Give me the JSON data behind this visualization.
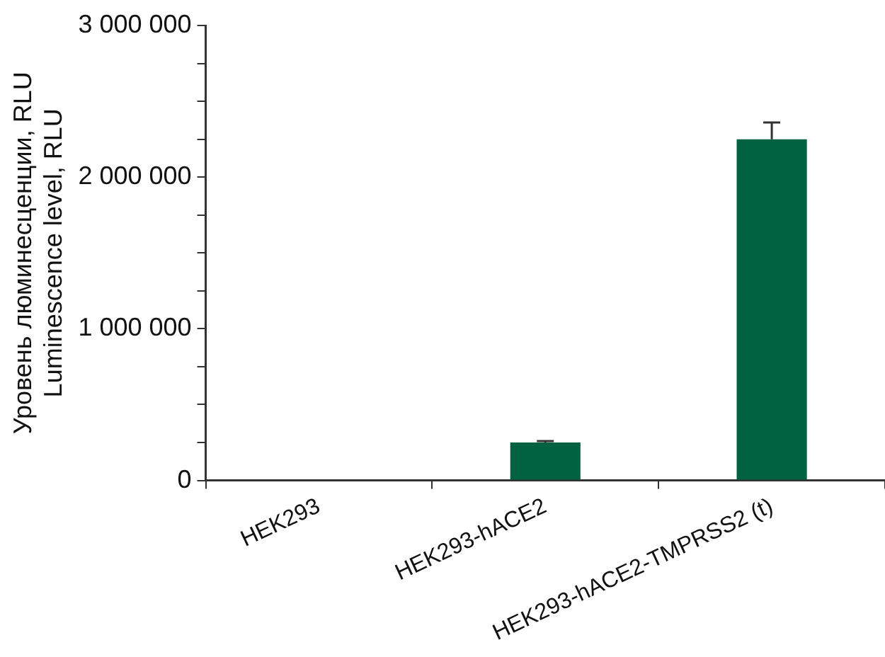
{
  "chart_data": {
    "type": "bar",
    "ylabel": "Уровень люминесценции, RLU\nLuminescence level, RLU",
    "categories": [
      "HEK293",
      "HEK293-hACE2",
      "HEK293-hACE2-TMPRSS2 (t)"
    ],
    "values": [
      0,
      250000,
      2250000
    ],
    "errors": [
      null,
      [
        250000,
        260000
      ],
      [
        2250000,
        2360000
      ]
    ],
    "color": "#006241",
    "ylim": [
      0,
      3000000
    ],
    "yticks": [
      {
        "value": 0,
        "label": "0"
      },
      {
        "value": 250000,
        "label": null
      },
      {
        "value": 500000,
        "label": null
      },
      {
        "value": 750000,
        "label": null
      },
      {
        "value": 1000000,
        "label": "1 000 000"
      },
      {
        "value": 1250000,
        "label": null
      },
      {
        "value": 1500000,
        "label": null
      },
      {
        "value": 1750000,
        "label": null
      },
      {
        "value": 2000000,
        "label": "2 000 000"
      },
      {
        "value": 2250000,
        "label": null
      },
      {
        "value": 2500000,
        "label": null
      },
      {
        "value": 2750000,
        "label": null
      },
      {
        "value": 3000000,
        "label": "3 000 000"
      }
    ],
    "grid": false,
    "legend": false
  }
}
